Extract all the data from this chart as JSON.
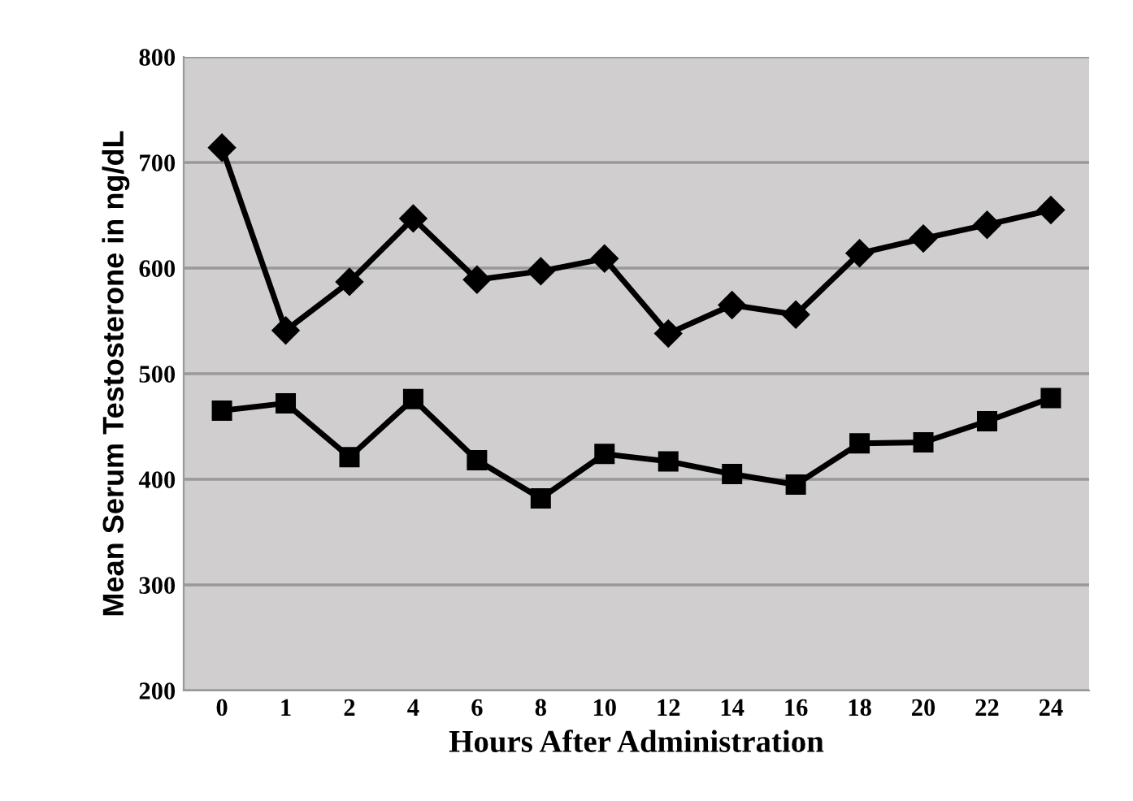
{
  "chart_data": {
    "type": "line",
    "xlabel": "Hours After Administration",
    "ylabel": "Mean Serum Testosterone in ng/dL",
    "categories": [
      "0",
      "1",
      "2",
      "4",
      "6",
      "8",
      "10",
      "12",
      "14",
      "16",
      "18",
      "20",
      "22",
      "24"
    ],
    "series": [
      {
        "color": "#000000",
        "marker": "diamond",
        "values": [
          714,
          541,
          587,
          647,
          589,
          597,
          609,
          538,
          565,
          556,
          614,
          628,
          641,
          655
        ]
      },
      {
        "color": "#000000",
        "marker": "square",
        "values": [
          465,
          472,
          421,
          476,
          418,
          382,
          424,
          417,
          405,
          395,
          434,
          435,
          455,
          477
        ]
      }
    ],
    "ylim": [
      200,
      800
    ],
    "yticks": [
      200,
      300,
      400,
      500,
      600,
      700,
      800
    ],
    "grid": "y",
    "line_style": "solid"
  }
}
